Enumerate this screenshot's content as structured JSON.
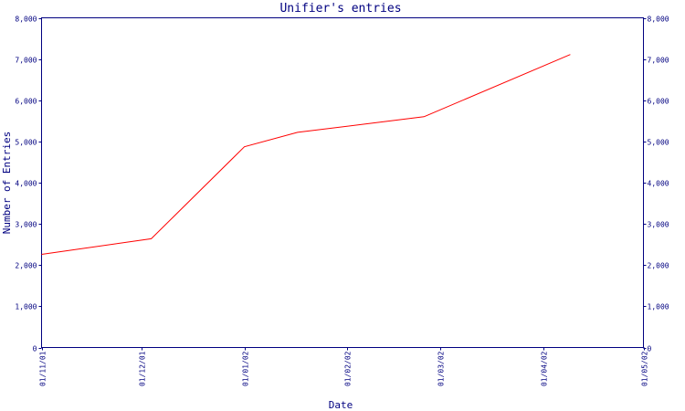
{
  "chart_data": {
    "type": "line",
    "title": "Unifier's entries",
    "xlabel": "Date",
    "ylabel": "Number of Entries",
    "x_tick_labels": [
      "01/11/01",
      "01/12/01",
      "01/01/02",
      "01/02/02",
      "01/03/02",
      "01/04/02",
      "01/05/02"
    ],
    "x_range": [
      "2001-11-01",
      "2002-05-01"
    ],
    "y_tick_labels": [
      "0",
      "1,000",
      "2,000",
      "3,000",
      "4,000",
      "5,000",
      "6,000",
      "7,000",
      "8,000"
    ],
    "ylim": [
      0,
      8000
    ],
    "secondary_y_axis": true,
    "grid": false,
    "series": [
      {
        "color": "#ff0000",
        "points": [
          {
            "x": "2001-11-01",
            "y": 2260
          },
          {
            "x": "2001-12-04",
            "y": 2640
          },
          {
            "x": "2002-01-01",
            "y": 4870
          },
          {
            "x": "2002-01-17",
            "y": 5220
          },
          {
            "x": "2002-02-24",
            "y": 5600
          },
          {
            "x": "2002-04-09",
            "y": 7110
          }
        ]
      }
    ]
  },
  "colors": {
    "axis": "#000080",
    "line": "#ff0000",
    "background": "#ffffff"
  }
}
